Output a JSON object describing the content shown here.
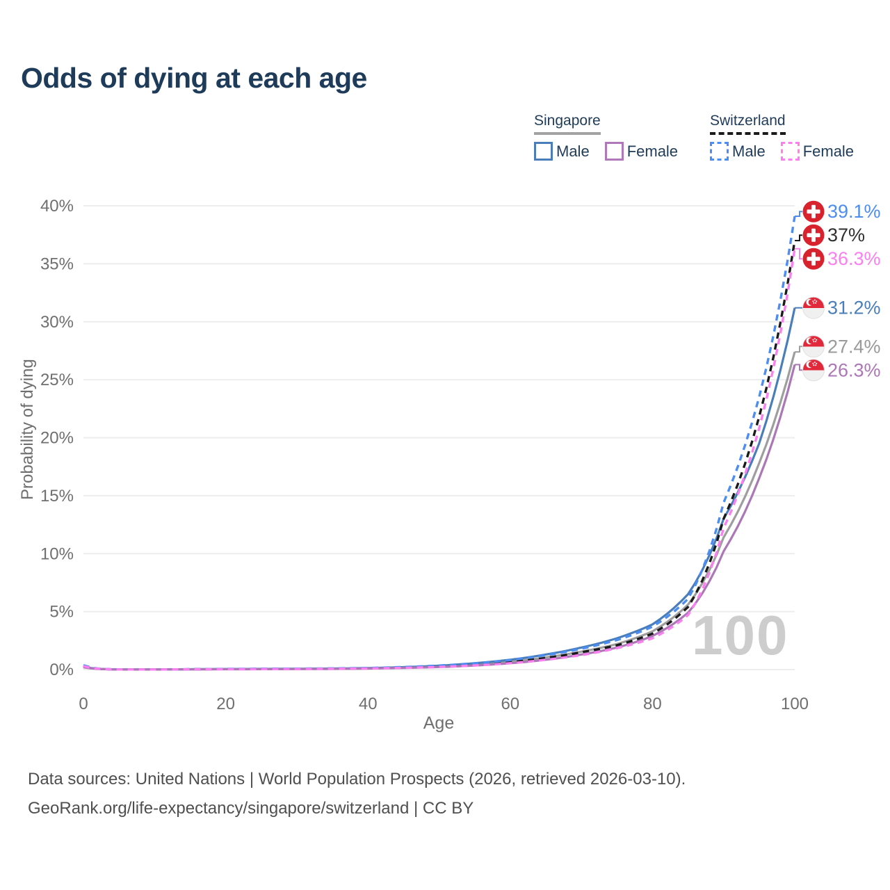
{
  "title": "Odds of dying at each age",
  "watermark_age": "100",
  "legend": {
    "groups": [
      {
        "label": "Singapore",
        "line_style": "solid",
        "line_color": "#a3a3a3",
        "items": [
          {
            "label": "Male",
            "style": "solid",
            "color": "#4a7eba"
          },
          {
            "label": "Female",
            "style": "solid",
            "color": "#b077bb"
          }
        ]
      },
      {
        "label": "Switzerland",
        "line_style": "dashed",
        "line_color": "#1a1a1a",
        "items": [
          {
            "label": "Male",
            "style": "dashed",
            "color": "#4d8df2"
          },
          {
            "label": "Female",
            "style": "dashed",
            "color": "#fb80ef"
          }
        ]
      }
    ]
  },
  "footer": {
    "line1": "Data sources: United Nations | World Population Prospects (2026, retrieved 2026-03-10).",
    "line2": "GeoRank.org/life-expectancy/singapore/switzerland | CC BY"
  },
  "chart_data": {
    "type": "line",
    "title": "Odds of dying at each age",
    "xlabel": "Age",
    "ylabel": "Probability of dying",
    "xlim": [
      0,
      100
    ],
    "ylim": [
      0,
      40
    ],
    "grid": "horizontal",
    "legend_position": "top-right",
    "x_ticks": [
      {
        "value": 0,
        "label": "0"
      },
      {
        "value": 20,
        "label": "20"
      },
      {
        "value": 40,
        "label": "40"
      },
      {
        "value": 60,
        "label": "60"
      },
      {
        "value": 80,
        "label": "80"
      },
      {
        "value": 100,
        "label": "100"
      }
    ],
    "y_ticks": [
      {
        "value": 0,
        "label": "0%"
      },
      {
        "value": 5,
        "label": "5%"
      },
      {
        "value": 10,
        "label": "10%"
      },
      {
        "value": 15,
        "label": "15%"
      },
      {
        "value": 20,
        "label": "20%"
      },
      {
        "value": 25,
        "label": "25%"
      },
      {
        "value": 30,
        "label": "30%"
      },
      {
        "value": 35,
        "label": "35%"
      },
      {
        "value": 40,
        "label": "40%"
      }
    ],
    "x": [
      0,
      5,
      10,
      15,
      20,
      25,
      30,
      35,
      40,
      45,
      50,
      55,
      60,
      65,
      70,
      75,
      80,
      85,
      90,
      95,
      100
    ],
    "series": [
      {
        "name": "Singapore Both sexes",
        "flag": "singapore",
        "color": "#9e9e9e",
        "label_color": "#9a9a9a",
        "dashed": false,
        "end_label": "27.4%",
        "values": [
          0.22,
          0.01,
          0.012,
          0.025,
          0.04,
          0.05,
          0.06,
          0.07,
          0.1,
          0.17,
          0.27,
          0.44,
          0.68,
          1.05,
          1.55,
          2.2,
          3.3,
          5.6,
          11.4,
          17.8,
          27.4
        ]
      },
      {
        "name": "Singapore Male",
        "flag": "singapore",
        "color": "#4a7eba",
        "label_color": "#4a7eba",
        "dashed": false,
        "end_label": "31.2%",
        "values": [
          0.25,
          0.012,
          0.012,
          0.03,
          0.05,
          0.06,
          0.07,
          0.09,
          0.13,
          0.21,
          0.34,
          0.55,
          0.85,
          1.3,
          1.9,
          2.7,
          3.9,
          6.5,
          13.0,
          19.5,
          31.2
        ]
      },
      {
        "name": "Singapore Female",
        "flag": "singapore",
        "color": "#ab77b7",
        "label_color": "#ab77b7",
        "dashed": false,
        "end_label": "26.3%",
        "values": [
          0.2,
          0.01,
          0.01,
          0.02,
          0.03,
          0.035,
          0.045,
          0.06,
          0.09,
          0.14,
          0.22,
          0.35,
          0.55,
          0.85,
          1.3,
          1.9,
          2.9,
          4.9,
          10.2,
          16.5,
          26.3
        ]
      },
      {
        "name": "Switzerland Both sexes",
        "flag": "switzerland",
        "color": "#1a1a1a",
        "label_color": "#2f2f2f",
        "dashed": true,
        "end_label": "37%",
        "values": [
          0.32,
          0.01,
          0.01,
          0.025,
          0.045,
          0.055,
          0.065,
          0.08,
          0.11,
          0.18,
          0.28,
          0.43,
          0.66,
          1.0,
          1.5,
          2.1,
          3.1,
          5.4,
          13.0,
          21.8,
          37.0
        ]
      },
      {
        "name": "Switzerland Male",
        "flag": "switzerland",
        "color": "#4d8df2",
        "label_color": "#4d8df2",
        "dashed": true,
        "end_label": "39.1%",
        "values": [
          0.38,
          0.012,
          0.012,
          0.03,
          0.06,
          0.07,
          0.08,
          0.1,
          0.14,
          0.22,
          0.35,
          0.54,
          0.82,
          1.25,
          1.8,
          2.55,
          3.7,
          6.1,
          14.4,
          23.5,
          39.1
        ]
      },
      {
        "name": "Switzerland Female",
        "flag": "switzerland",
        "color": "#fb80ef",
        "label_color": "#fb80ef",
        "dashed": true,
        "end_label": "36.3%",
        "values": [
          0.3,
          0.01,
          0.01,
          0.02,
          0.035,
          0.04,
          0.05,
          0.065,
          0.095,
          0.15,
          0.23,
          0.36,
          0.55,
          0.85,
          1.25,
          1.85,
          2.7,
          4.7,
          12.2,
          20.8,
          36.3
        ]
      }
    ],
    "flag_colors": {
      "switzerland_red": "#d8232f",
      "singapore_red": "#e2293c",
      "singapore_white": "#f0f0f0"
    },
    "grid_color": "#ededed",
    "tick_color": "#6f6f6f"
  }
}
